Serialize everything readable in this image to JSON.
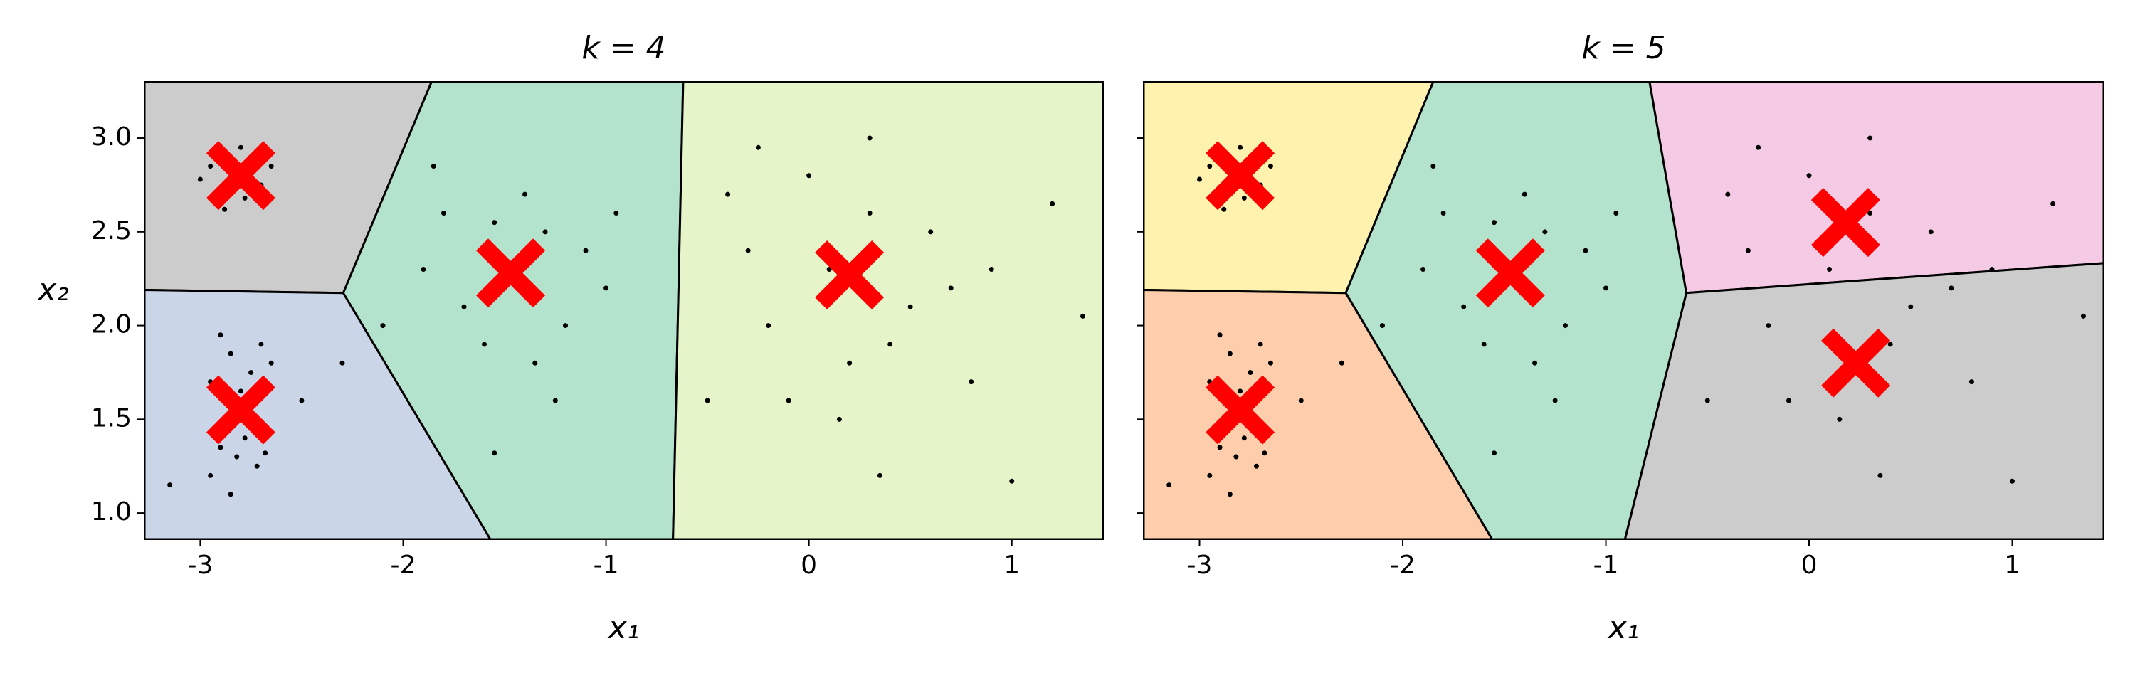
{
  "chart_data": [
    {
      "type": "scatter",
      "title": "k = 4",
      "xlabel": "x₁",
      "ylabel": "x₂",
      "xlim": [
        -3.275,
        1.45
      ],
      "ylim": [
        0.86,
        3.3
      ],
      "xticks": [
        -3,
        -2,
        -1,
        0,
        1
      ],
      "yticks": [
        {
          "value": 1,
          "label": "1.0"
        },
        {
          "value": 1.5,
          "label": "1.5"
        },
        {
          "value": 2,
          "label": "2.0"
        },
        {
          "value": 2.5,
          "label": "2.5"
        },
        {
          "value": 3,
          "label": "3.0"
        }
      ],
      "regions": [
        {
          "color": "#cccccc",
          "x": [
            -3.275,
            -1.86,
            -2.295,
            -3.275
          ],
          "y": [
            3.3,
            3.3,
            2.174,
            2.19
          ]
        },
        {
          "color": "#cbd5e8",
          "x": [
            -3.275,
            -2.295,
            -1.57,
            -3.275
          ],
          "y": [
            2.19,
            2.174,
            0.86,
            0.86
          ]
        },
        {
          "color": "#b3e2cd",
          "x": [
            -1.86,
            -0.62,
            -0.67,
            -1.57,
            -2.295
          ],
          "y": [
            3.3,
            3.3,
            0.86,
            0.86,
            2.174
          ]
        },
        {
          "color": "#e6f5c9",
          "x": [
            -0.62,
            1.45,
            1.45,
            -0.67
          ],
          "y": [
            3.3,
            3.3,
            0.86,
            0.86
          ]
        }
      ],
      "points": {
        "color": "#000000",
        "x": [
          -2.85,
          -2.75,
          -2.9,
          -2.7,
          -2.95,
          -2.8,
          -2.65,
          -2.88,
          -2.78,
          -3.0,
          -2.85,
          -2.75,
          -2.9,
          -2.7,
          -2.8,
          -2.95,
          -2.65,
          -2.82,
          -2.72,
          -2.9,
          -2.78,
          -2.68,
          -2.95,
          -2.85,
          -3.15,
          -2.5,
          -2.3,
          -1.5,
          -1.3,
          -1.7,
          -1.2,
          -1.8,
          -1.1,
          -1.6,
          -1.4,
          -1.0,
          -1.9,
          -1.35,
          -1.55,
          -2.1,
          -0.95,
          -1.25,
          -1.85,
          -1.55,
          0.1,
          0.3,
          -0.2,
          0.5,
          0.0,
          0.6,
          -0.3,
          0.2,
          0.4,
          -0.1,
          0.7,
          0.8,
          0.3,
          -0.4,
          1.2,
          1.0,
          -0.5,
          0.9,
          0.15,
          -0.25,
          0.35,
          1.35
        ],
        "y": [
          2.82,
          2.9,
          2.7,
          2.75,
          2.85,
          2.95,
          2.85,
          2.62,
          2.68,
          2.78,
          1.85,
          1.75,
          1.95,
          1.9,
          1.65,
          1.7,
          1.8,
          1.3,
          1.25,
          1.35,
          1.4,
          1.32,
          1.2,
          1.1,
          1.15,
          1.6,
          1.8,
          2.3,
          2.5,
          2.1,
          2.0,
          2.6,
          2.4,
          1.9,
          2.7,
          2.2,
          2.3,
          1.8,
          2.55,
          2.0,
          2.6,
          1.6,
          2.85,
          1.32,
          2.3,
          2.6,
          2.0,
          2.1,
          2.8,
          2.5,
          2.4,
          1.8,
          1.9,
          1.6,
          2.2,
          1.7,
          3.0,
          2.7,
          2.65,
          1.17,
          1.6,
          2.3,
          1.5,
          2.95,
          1.2,
          2.05
        ]
      },
      "centroids": {
        "color": "#ff0000",
        "x": [
          -2.8,
          -2.8,
          -1.47,
          0.2
        ],
        "y": [
          2.8,
          1.55,
          2.28,
          2.27
        ]
      }
    },
    {
      "type": "scatter",
      "title": "k = 5",
      "xlabel": "x₁",
      "xlim": [
        -3.275,
        1.45
      ],
      "ylim": [
        0.86,
        3.3
      ],
      "xticks": [
        -3,
        -2,
        -1,
        0,
        1
      ],
      "yticks": [
        1,
        1.5,
        2,
        2.5,
        3
      ],
      "regions": [
        {
          "color": "#fff2ae",
          "x": [
            -3.275,
            -1.85,
            -2.28,
            -3.275
          ],
          "y": [
            3.3,
            3.3,
            2.174,
            2.19
          ]
        },
        {
          "color": "#fdcdac",
          "x": [
            -3.275,
            -2.28,
            -1.56,
            -3.275
          ],
          "y": [
            2.19,
            2.174,
            0.86,
            0.86
          ]
        },
        {
          "color": "#b3e2cd",
          "x": [
            -1.85,
            -0.785,
            -0.604,
            -0.906,
            -1.56,
            -2.28
          ],
          "y": [
            3.3,
            3.3,
            2.174,
            0.86,
            0.86,
            2.174
          ]
        },
        {
          "color": "#f4cae4",
          "x": [
            -0.785,
            1.45,
            1.45,
            -0.604
          ],
          "y": [
            3.3,
            3.3,
            2.333,
            2.174
          ]
        },
        {
          "color": "#cccccc",
          "x": [
            -0.604,
            1.45,
            1.45,
            -0.906
          ],
          "y": [
            2.174,
            2.333,
            0.86,
            0.86
          ]
        }
      ],
      "points": {
        "color": "#000000",
        "x": [
          -2.85,
          -2.75,
          -2.9,
          -2.7,
          -2.95,
          -2.8,
          -2.65,
          -2.88,
          -2.78,
          -3.0,
          -2.85,
          -2.75,
          -2.9,
          -2.7,
          -2.8,
          -2.95,
          -2.65,
          -2.82,
          -2.72,
          -2.9,
          -2.78,
          -2.68,
          -2.95,
          -2.85,
          -3.15,
          -2.5,
          -2.3,
          -1.5,
          -1.3,
          -1.7,
          -1.2,
          -1.8,
          -1.1,
          -1.6,
          -1.4,
          -1.0,
          -1.9,
          -1.35,
          -1.55,
          -2.1,
          -0.95,
          -1.25,
          -1.85,
          -1.55,
          0.1,
          0.3,
          -0.2,
          0.5,
          0.0,
          0.6,
          -0.3,
          0.2,
          0.4,
          -0.1,
          0.7,
          0.8,
          0.3,
          -0.4,
          1.2,
          1.0,
          -0.5,
          0.9,
          0.15,
          -0.25,
          0.35,
          1.35
        ],
        "y": [
          2.82,
          2.9,
          2.7,
          2.75,
          2.85,
          2.95,
          2.85,
          2.62,
          2.68,
          2.78,
          1.85,
          1.75,
          1.95,
          1.9,
          1.65,
          1.7,
          1.8,
          1.3,
          1.25,
          1.35,
          1.4,
          1.32,
          1.2,
          1.1,
          1.15,
          1.6,
          1.8,
          2.3,
          2.5,
          2.1,
          2.0,
          2.6,
          2.4,
          1.9,
          2.7,
          2.2,
          2.3,
          1.8,
          2.55,
          2.0,
          2.6,
          1.6,
          2.85,
          1.32,
          2.3,
          2.6,
          2.0,
          2.1,
          2.8,
          2.5,
          2.4,
          1.8,
          1.9,
          1.6,
          2.2,
          1.7,
          3.0,
          2.7,
          2.65,
          1.17,
          1.6,
          2.3,
          1.5,
          2.95,
          1.2,
          2.05
        ]
      },
      "centroids": {
        "color": "#ff0000",
        "x": [
          -2.8,
          -2.8,
          -1.47,
          0.18,
          0.23
        ],
        "y": [
          2.8,
          1.55,
          2.28,
          2.55,
          1.8
        ]
      }
    }
  ]
}
